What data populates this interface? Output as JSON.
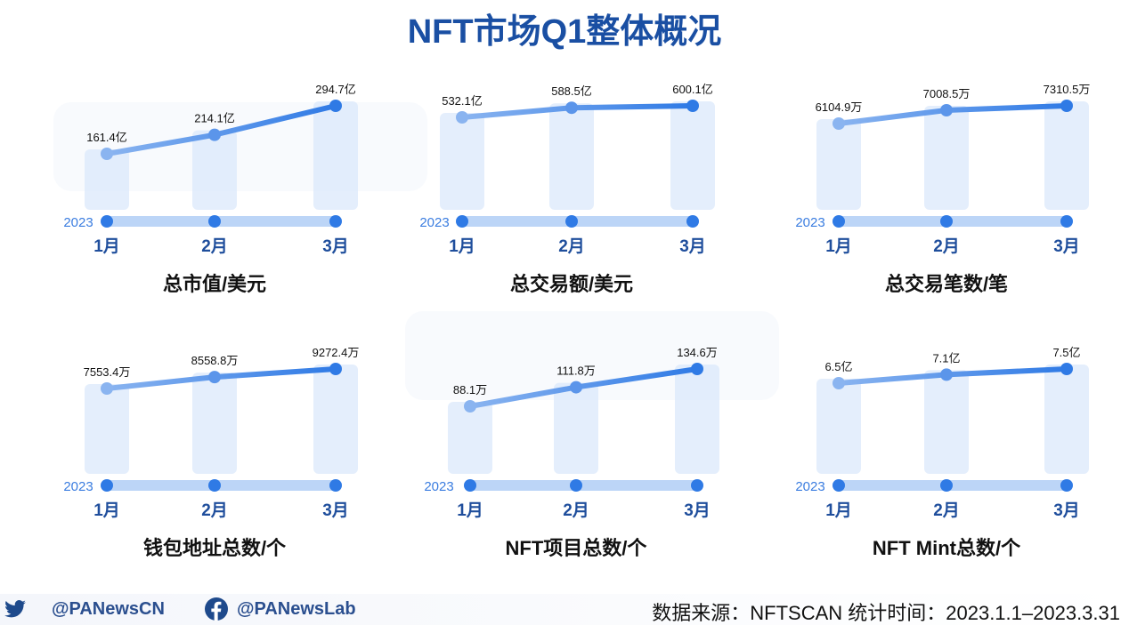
{
  "title": "NFT市场Q1整体概况",
  "watermark": "PANews",
  "colors": {
    "line_start": "#8ab4f0",
    "line_end": "#2f7ae5",
    "bar": "#dbe8fb",
    "axis": "#bcd5f7",
    "month": "#1f4e9c",
    "year": "#3b7de0"
  },
  "chart_data": [
    {
      "type": "line",
      "title": "总市值/美元",
      "year": "2023",
      "categories": [
        "1月",
        "2月",
        "3月"
      ],
      "values": [
        161.4,
        214.1,
        294.7
      ],
      "labels": [
        "161.4亿",
        "214.1亿",
        "294.7亿"
      ]
    },
    {
      "type": "line",
      "title": "总交易额/美元",
      "year": "2023",
      "categories": [
        "1月",
        "2月",
        "3月"
      ],
      "values": [
        532.1,
        588.5,
        600.1
      ],
      "labels": [
        "532.1亿",
        "588.5亿",
        "600.1亿"
      ]
    },
    {
      "type": "line",
      "title": "总交易笔数/笔",
      "year": "2023",
      "categories": [
        "1月",
        "2月",
        "3月"
      ],
      "values": [
        6104.9,
        7008.5,
        7310.5
      ],
      "labels": [
        "6104.9万",
        "7008.5万",
        "7310.5万"
      ]
    },
    {
      "type": "line",
      "title": "钱包地址总数/个",
      "year": "2023",
      "categories": [
        "1月",
        "2月",
        "3月"
      ],
      "values": [
        7553.4,
        8558.8,
        9272.4
      ],
      "labels": [
        "7553.4万",
        "8558.8万",
        "9272.4万"
      ]
    },
    {
      "type": "line",
      "title": "NFT项目总数/个",
      "year": "2023",
      "categories": [
        "1月",
        "2月",
        "3月"
      ],
      "values": [
        88.1,
        111.8,
        134.6
      ],
      "labels": [
        "88.1万",
        "111.8万",
        "134.6万"
      ]
    },
    {
      "type": "line",
      "title": "NFT Mint总数/个",
      "year": "2023",
      "categories": [
        "1月",
        "2月",
        "3月"
      ],
      "values": [
        6.5,
        7.1,
        7.5
      ],
      "labels": [
        "6.5亿",
        "7.1亿",
        "7.5亿"
      ]
    }
  ],
  "footer": {
    "twitter": "@PANewsCN",
    "facebook": "@PANewsLab",
    "source": "数据来源：NFTSCAN 统计时间：2023.1.1–2023.3.31"
  }
}
